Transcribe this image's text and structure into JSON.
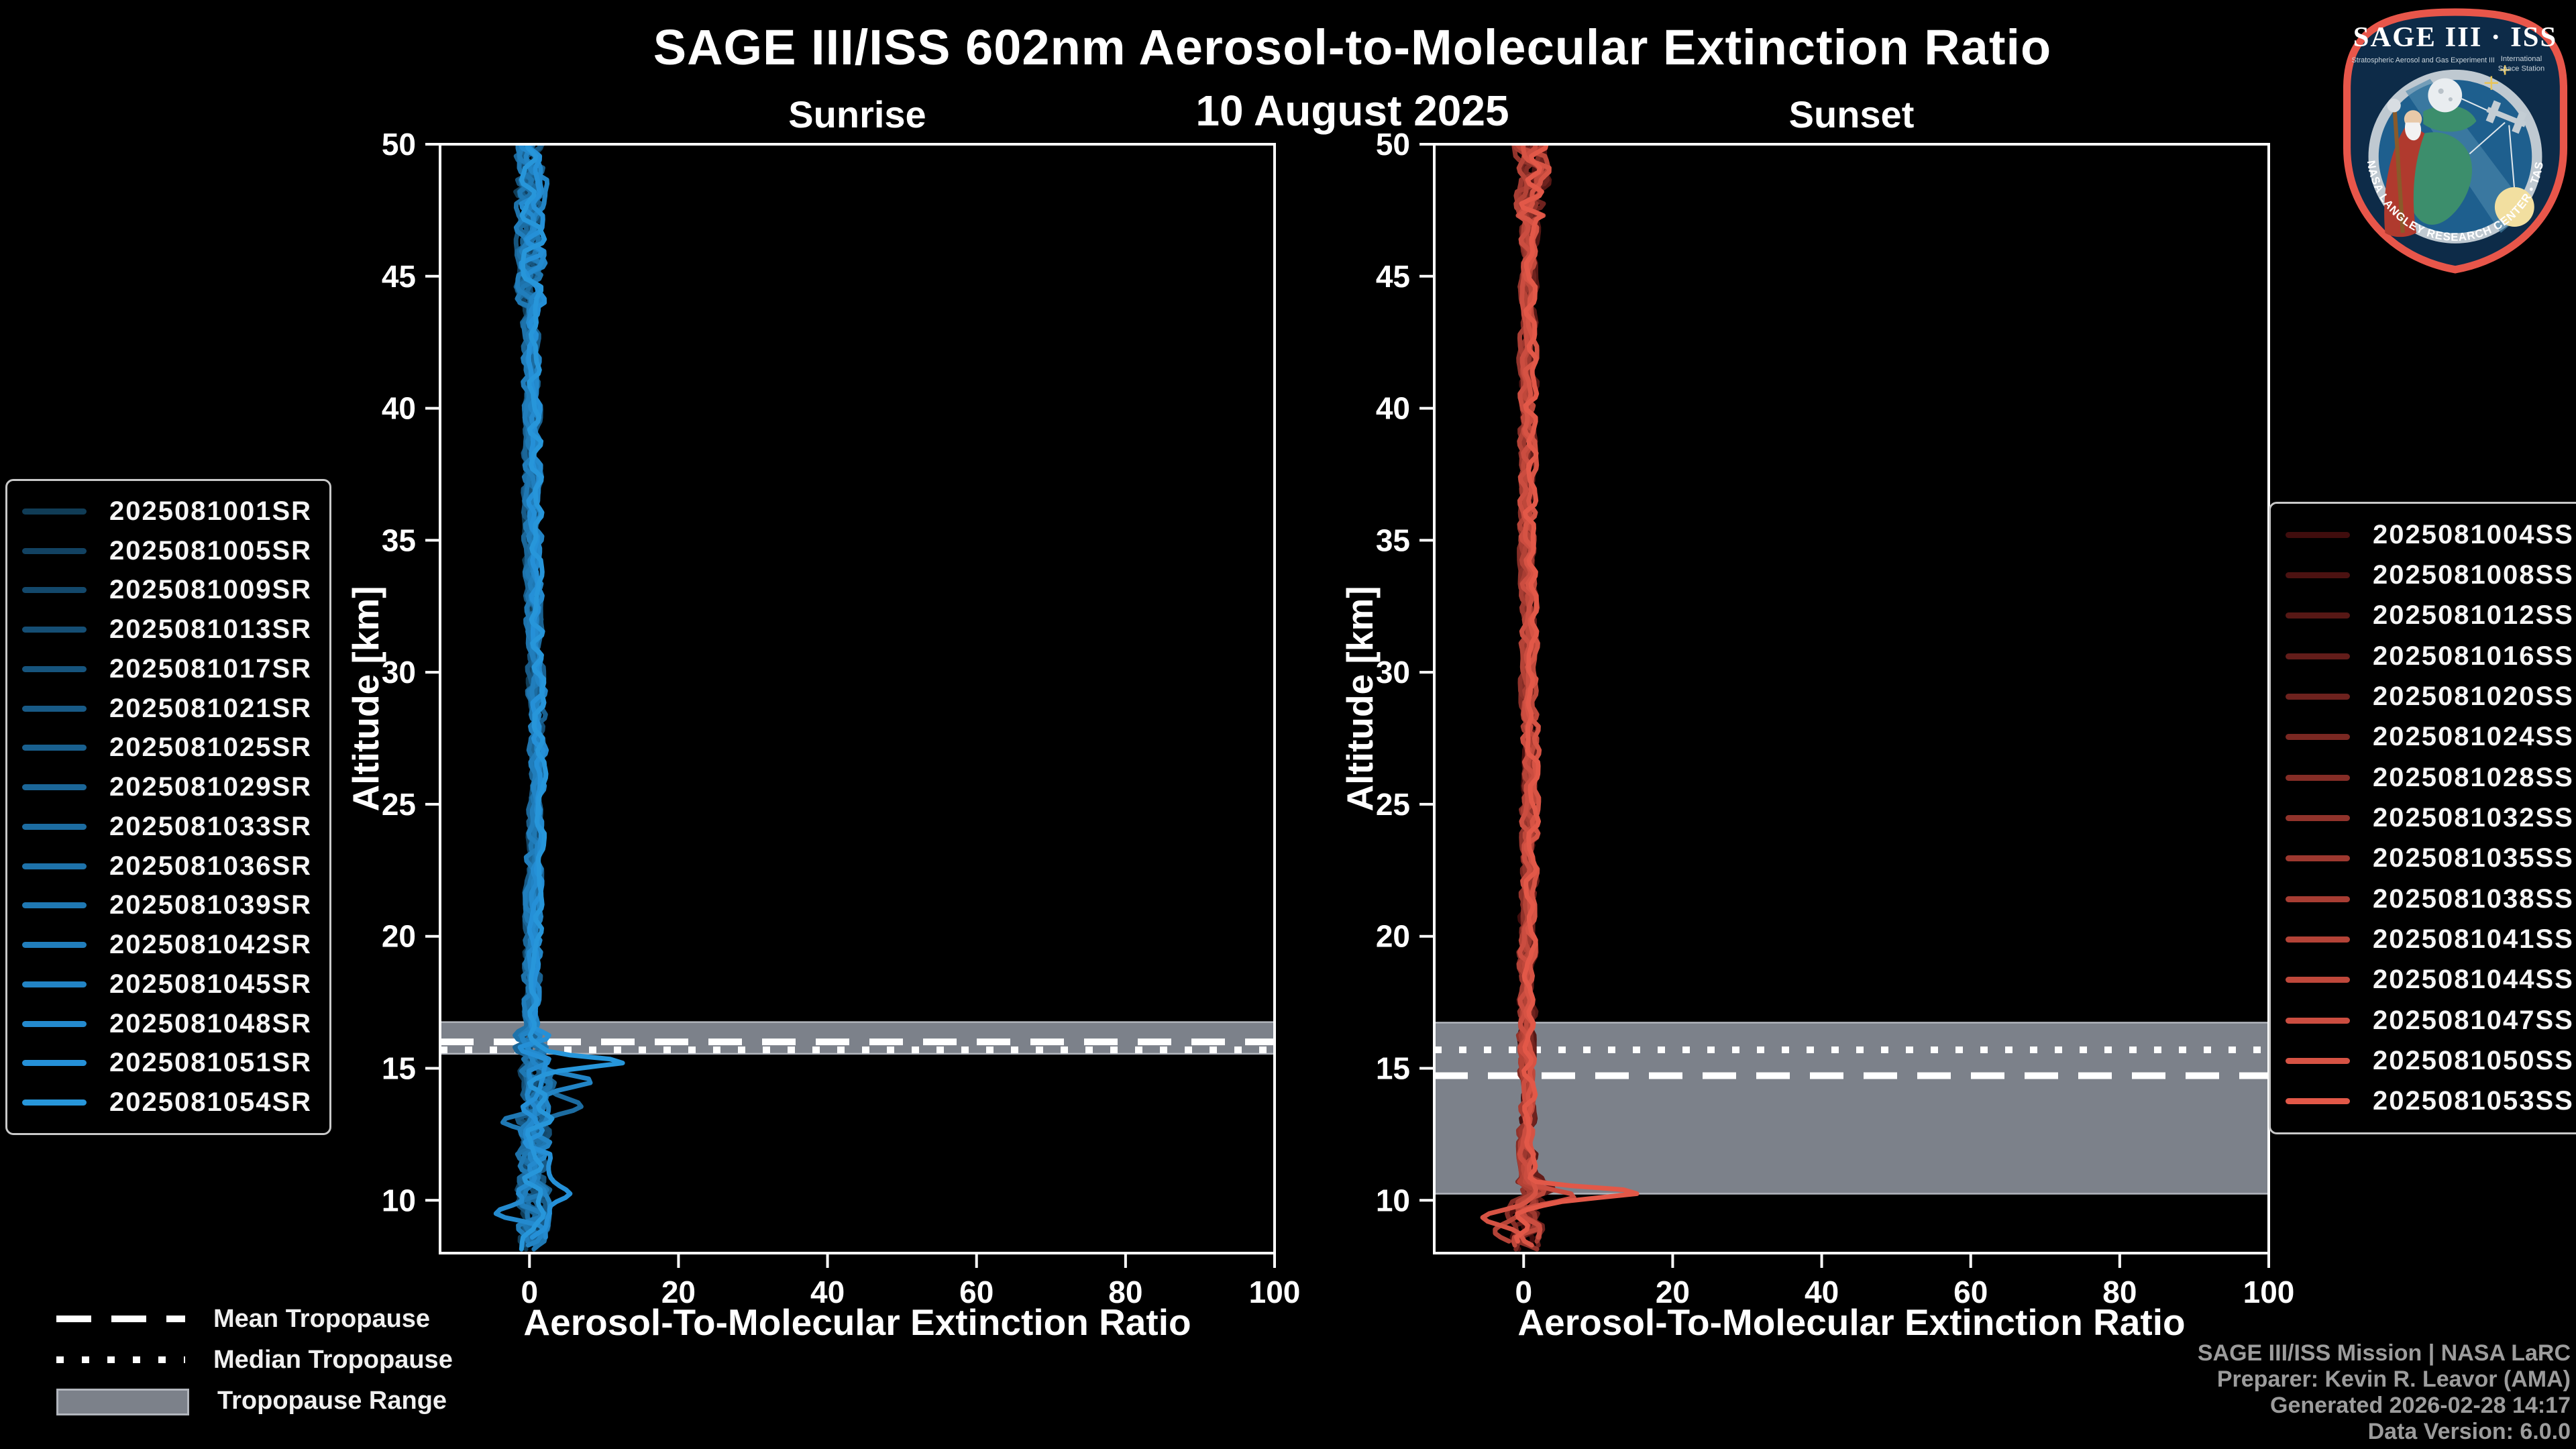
{
  "header": {
    "title": "SAGE III/ISS 602nm Aerosol-to-Molecular Extinction Ratio",
    "subtitle": "10 August 2025"
  },
  "footer": {
    "lines": [
      "SAGE III/ISS Mission | NASA LaRC",
      "Preparer: Kevin R. Leavor (AMA)",
      "Generated 2026-02-28 14:17",
      "Data Version: 6.0.0"
    ]
  },
  "tropopause_legend": {
    "items": [
      {
        "style": "dashed",
        "label": "Mean Tropopause"
      },
      {
        "style": "dotted",
        "label": "Median Tropopause"
      },
      {
        "style": "band",
        "label": "Tropopause Range"
      }
    ],
    "band_color": "#7c818a"
  },
  "logo": {
    "title": "SAGE III · ISS",
    "sub_left": "Stratospheric Aerosol and Gas Experiment III",
    "sub_right_1": "International",
    "sub_right_2": "Space Station",
    "arc_text": "BALL • NASA LANGLEY RESEARCH CENTER • TAS-I • ESA",
    "border_color": "#e8564a",
    "bg_color": "#0d2b48"
  },
  "chart_data": [
    {
      "id": "sunrise",
      "type": "line",
      "panel_title": "Sunrise",
      "xlabel": "Aerosol-To-Molecular Extinction Ratio",
      "ylabel": "Altitude [km]",
      "xlim": [
        -12,
        100
      ],
      "ylim": [
        8,
        50
      ],
      "x_ticks": [
        0,
        20,
        40,
        60,
        80,
        100
      ],
      "y_ticks": [
        50,
        45,
        40,
        35,
        30,
        25,
        20,
        15,
        10
      ],
      "grid": false,
      "legend_position": "outside-left",
      "tropopause": {
        "range_km": [
          15.55,
          16.75
        ],
        "mean_km": 16.0,
        "median_km": 15.7,
        "band_color": "#7c818a",
        "line_color": "#ffffff"
      },
      "base_profile": [
        [
          50,
          0.4
        ],
        [
          47,
          0.3
        ],
        [
          45,
          0.35
        ],
        [
          40,
          0.45
        ],
        [
          35,
          0.55
        ],
        [
          30,
          0.95
        ],
        [
          27,
          1.25
        ],
        [
          25,
          1.05
        ],
        [
          22,
          0.7
        ],
        [
          20,
          0.55
        ],
        [
          18,
          0.45
        ],
        [
          16.5,
          0.3
        ],
        [
          15.5,
          0.6
        ],
        [
          14.5,
          1.1
        ],
        [
          13.5,
          0.9
        ],
        [
          12,
          0.7
        ],
        [
          10.5,
          0.6
        ],
        [
          9.5,
          0.8
        ],
        [
          8.2,
          0.5
        ]
      ],
      "noise": {
        "top_above_km": 44,
        "top_amp": 1.8,
        "mid_amp": 0.9,
        "bottom_below_km": 16.5,
        "bottom_amp": 2.2
      },
      "features": [
        {
          "series": 15,
          "alt": 15.25,
          "height": 13.6,
          "width": 0.26
        },
        {
          "series": 12,
          "alt": 14.55,
          "height": 6.2,
          "width": 0.33
        },
        {
          "series": 8,
          "alt": 13.6,
          "height": 4.5,
          "width": 0.4
        },
        {
          "series": 10,
          "alt": 12.95,
          "height": -4.0,
          "width": 0.4
        },
        {
          "series": 14,
          "alt": 10.15,
          "height": 3.4,
          "width": 0.45
        },
        {
          "series": 13,
          "alt": 9.6,
          "height": -4.4,
          "width": 0.45
        }
      ],
      "series": [
        {
          "name": "2025081001SR",
          "color": "#103c56"
        },
        {
          "name": "2025081005SR",
          "color": "#124262"
        },
        {
          "name": "2025081009SR",
          "color": "#13486b"
        },
        {
          "name": "2025081013SR",
          "color": "#154e74"
        },
        {
          "name": "2025081017SR",
          "color": "#16547d"
        },
        {
          "name": "2025081021SR",
          "color": "#185a86"
        },
        {
          "name": "2025081025SR",
          "color": "#19608f"
        },
        {
          "name": "2025081029SR",
          "color": "#1b6698"
        },
        {
          "name": "2025081033SR",
          "color": "#1c6ca1"
        },
        {
          "name": "2025081036SR",
          "color": "#1e72aa"
        },
        {
          "name": "2025081039SR",
          "color": "#1f78b3"
        },
        {
          "name": "2025081042SR",
          "color": "#217ebc"
        },
        {
          "name": "2025081045SR",
          "color": "#2284c5"
        },
        {
          "name": "2025081048SR",
          "color": "#248ace"
        },
        {
          "name": "2025081051SR",
          "color": "#2590d7"
        },
        {
          "name": "2025081054SR",
          "color": "#2796da"
        }
      ]
    },
    {
      "id": "sunset",
      "type": "line",
      "panel_title": "Sunset",
      "xlabel": "Aerosol-To-Molecular Extinction Ratio",
      "ylabel": "Altitude [km]",
      "xlim": [
        -12,
        100
      ],
      "ylim": [
        8,
        50
      ],
      "x_ticks": [
        0,
        20,
        40,
        60,
        80,
        100
      ],
      "y_ticks": [
        50,
        45,
        40,
        35,
        30,
        25,
        20,
        15,
        10
      ],
      "grid": false,
      "legend_position": "outside-right",
      "tropopause": {
        "range_km": [
          10.25,
          16.73
        ],
        "mean_km": 14.72,
        "median_km": 15.7,
        "band_color": "#7c818a",
        "line_color": "#ffffff"
      },
      "base_profile": [
        [
          50,
          0.8
        ],
        [
          48.5,
          1.3
        ],
        [
          47.5,
          0.8
        ],
        [
          45,
          0.55
        ],
        [
          40,
          0.55
        ],
        [
          35,
          0.5
        ],
        [
          30,
          0.75
        ],
        [
          26,
          0.9
        ],
        [
          22,
          0.6
        ],
        [
          18,
          0.45
        ],
        [
          15,
          0.4
        ],
        [
          12.5,
          0.35
        ],
        [
          11,
          0.45
        ],
        [
          10.3,
          0.9
        ],
        [
          9.6,
          0.2
        ],
        [
          8.8,
          0.5
        ],
        [
          8.1,
          0.4
        ]
      ],
      "noise": {
        "top_above_km": 47.2,
        "top_amp": 2.1,
        "mid_amp": 0.85,
        "bottom_below_km": 10.8,
        "bottom_amp": 2.1
      },
      "features": [
        {
          "series": 14,
          "alt": 10.3,
          "height": 14.6,
          "width": 0.26
        },
        {
          "series": 12,
          "alt": 10.1,
          "height": 6.4,
          "width": 0.3
        },
        {
          "series": 13,
          "alt": 9.35,
          "height": -5.2,
          "width": 0.35
        },
        {
          "series": 3,
          "alt": 10.6,
          "height": 3.6,
          "width": 0.4
        },
        {
          "series": 10,
          "alt": 8.85,
          "height": -3.4,
          "width": 0.4
        },
        {
          "series": 2,
          "alt": 48.6,
          "height": 3.2,
          "width": 0.5
        }
      ],
      "series": [
        {
          "name": "2025081004SS",
          "color": "#400d0d"
        },
        {
          "name": "2025081008SS",
          "color": "#4c1211"
        },
        {
          "name": "2025081012SS",
          "color": "#571815"
        },
        {
          "name": "2025081016SS",
          "color": "#631d1a"
        },
        {
          "name": "2025081020SS",
          "color": "#6e221e"
        },
        {
          "name": "2025081024SS",
          "color": "#7a2822"
        },
        {
          "name": "2025081028SS",
          "color": "#852d26"
        },
        {
          "name": "2025081032SS",
          "color": "#91332b"
        },
        {
          "name": "2025081035SS",
          "color": "#9d382f"
        },
        {
          "name": "2025081038SS",
          "color": "#a83d33"
        },
        {
          "name": "2025081041SS",
          "color": "#b44337"
        },
        {
          "name": "2025081044SS",
          "color": "#bf483b"
        },
        {
          "name": "2025081047SS",
          "color": "#cb4d40"
        },
        {
          "name": "2025081050SS",
          "color": "#d65344"
        },
        {
          "name": "2025081053SS",
          "color": "#e25848"
        }
      ]
    }
  ]
}
